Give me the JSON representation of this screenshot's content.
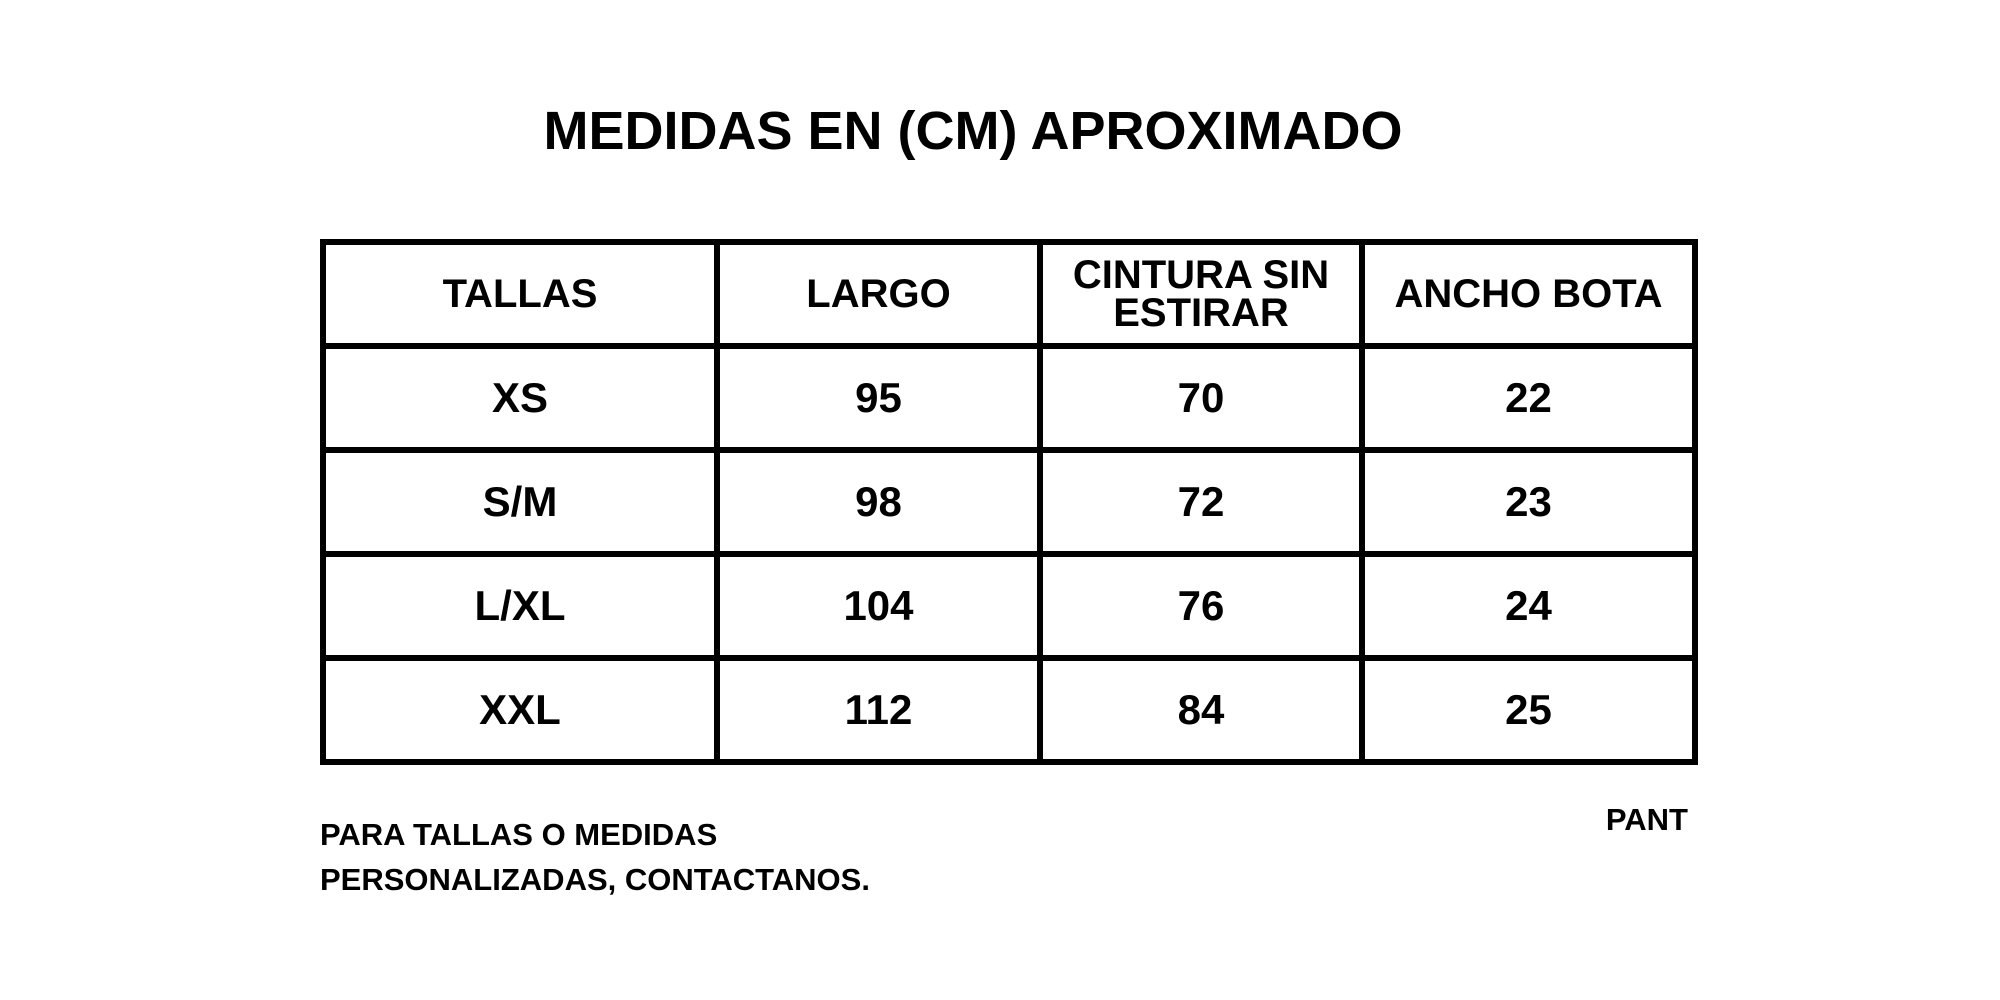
{
  "title": "MEDIDAS EN (CM) APROXIMADO",
  "table": {
    "headers": [
      "TALLAS",
      "LARGO",
      "CINTURA SIN ESTIRAR",
      "ANCHO BOTA"
    ],
    "rows": [
      [
        "XS",
        "95",
        "70",
        "22"
      ],
      [
        "S/M",
        "98",
        "72",
        "23"
      ],
      [
        "L/XL",
        "104",
        "76",
        "24"
      ],
      [
        "XXL",
        "112",
        "84",
        "25"
      ]
    ]
  },
  "footer": {
    "note_line1": "PARA TALLAS O MEDIDAS",
    "note_line2": "PERSONALIZADAS, CONTACTANOS.",
    "code": "PANT"
  }
}
